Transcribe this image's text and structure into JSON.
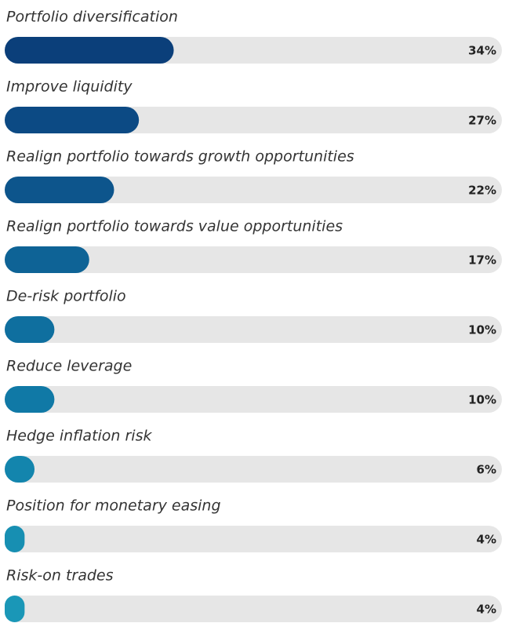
{
  "chart_data": {
    "type": "bar",
    "orientation": "horizontal",
    "categories": [
      "Portfolio diversification",
      "Improve liquidity",
      "Realign portfolio towards growth opportunities",
      "Realign portfolio towards value opportunities",
      "De-risk portfolio",
      "Reduce leverage",
      "Hedge inflation risk",
      "Position for monetary easing",
      "Risk-on trades"
    ],
    "values": [
      34,
      27,
      22,
      17,
      10,
      10,
      6,
      4,
      4
    ],
    "value_labels": [
      "34%",
      "27%",
      "22%",
      "17%",
      "10%",
      "10%",
      "6%",
      "4%",
      "4%"
    ],
    "colors": [
      "#0b3f7a",
      "#0c4a84",
      "#0d558c",
      "#0e6396",
      "#0f6f9f",
      "#1079a6",
      "#1385ad",
      "#178fb2",
      "#1a97b7"
    ],
    "track_color": "#e6e6e6",
    "xlim": [
      0,
      100
    ]
  }
}
